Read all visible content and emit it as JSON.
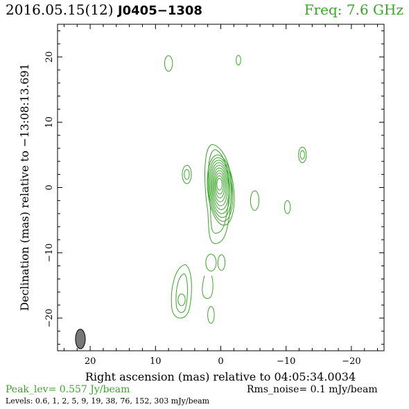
{
  "header": {
    "date_epoch": "2016.05.15(12)",
    "source": "J0405−1308",
    "frequency": "Freq: 7.6 GHz"
  },
  "chart_data": {
    "type": "contour",
    "title": "",
    "xlabel": "Right ascension (mas) relative to 04:05:34.0034",
    "ylabel": "Declination (mas) relative to −13:08:13.691",
    "xlim": [
      25,
      -25
    ],
    "ylim": [
      -25,
      25
    ],
    "x_ticks": [
      20,
      10,
      0,
      -10,
      -20
    ],
    "y_ticks": [
      20,
      10,
      0,
      -10,
      -20
    ],
    "x_tick_labels": [
      "20",
      "10",
      "0",
      "−10",
      "−20"
    ],
    "y_tick_labels": [
      "20",
      "10",
      "0",
      "−10",
      "−20"
    ],
    "contour_color": "#3aa52a",
    "core": {
      "x": 0.0,
      "y": 0.0
    },
    "components": [
      {
        "name": "core-jet",
        "x": 0.2,
        "y": 0.5,
        "levels": 10
      },
      {
        "name": "north-west blob",
        "x": 8.0,
        "y": 19.0,
        "levels": 1
      },
      {
        "name": "north blob",
        "x": -2.7,
        "y": 19.5,
        "levels": 1
      },
      {
        "name": "east blob",
        "x": 5.2,
        "y": 2.0,
        "levels": 2
      },
      {
        "name": "west blob",
        "x": -12.5,
        "y": 5.0,
        "levels": 2
      },
      {
        "name": "south-west blob 1",
        "x": -5.2,
        "y": -2.0,
        "levels": 1
      },
      {
        "name": "south-west blob 2",
        "x": -10.2,
        "y": -3.0,
        "levels": 1
      },
      {
        "name": "south blob 1",
        "x": 1.5,
        "y": -11.5,
        "levels": 1
      },
      {
        "name": "south blob 2",
        "x": -0.1,
        "y": -11.5,
        "levels": 1
      },
      {
        "name": "south-east extension",
        "x": 6.0,
        "y": -16.0,
        "levels": 3
      },
      {
        "name": "south blob 3",
        "x": 1.5,
        "y": -19.5,
        "levels": 1
      }
    ],
    "beam": {
      "x": 21.5,
      "y": -23.2,
      "major_mas": 3.0,
      "minor_mas": 1.5,
      "color": "#777777"
    },
    "peak_level": "Peak_lev=  0.557 Jy/beam",
    "rms_noise": "Rms_noise=  0.1 mJy/beam",
    "levels_text": "Levels: 0.6,   1,   2,   5,   9,  19,  38,  76, 152, 303 mJy/beam"
  }
}
